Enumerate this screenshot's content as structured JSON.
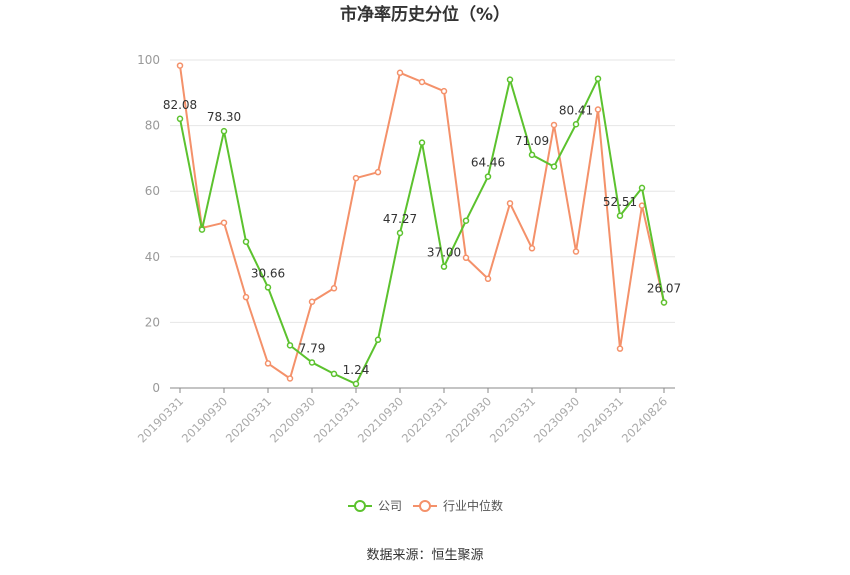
{
  "source": "数据来源：恒生聚源",
  "chart_data": {
    "type": "line",
    "title": "市净率历史分位（%）",
    "xlabel": "",
    "ylabel": "",
    "ylim": [
      0,
      100
    ],
    "yticks": [
      "0",
      "20",
      "40",
      "60",
      "80",
      "100"
    ],
    "tick_labels": [
      "20190331",
      "20190930",
      "20200331",
      "20200930",
      "20210331",
      "20210930",
      "20220331",
      "20220930",
      "20230331",
      "20230930",
      "20240331",
      "20240826"
    ],
    "x": [
      "20190331",
      "",
      "20190930",
      "",
      "20200331",
      "",
      "20200930",
      "",
      "20210331",
      "",
      "20210930",
      "",
      "20220331",
      "",
      "20220930",
      "",
      "20230331",
      "",
      "20230930",
      "",
      "20240331",
      "",
      "20240826"
    ],
    "grid": true,
    "legend_position": "bottom",
    "series": [
      {
        "name": "公司",
        "color": "#5cc22e",
        "values": [
          82.08,
          48.3,
          78.3,
          44.6,
          30.66,
          13.0,
          7.79,
          4.3,
          1.24,
          14.7,
          47.27,
          74.8,
          37.0,
          51.0,
          64.46,
          94.0,
          71.09,
          67.5,
          80.41,
          94.3,
          52.51,
          61.0,
          26.07
        ],
        "labels": [
          "82.08",
          "",
          "78.30",
          "",
          "30.66",
          "",
          "7.79",
          "",
          "1.24",
          "",
          "47.27",
          "",
          "37.00",
          "",
          "64.46",
          "",
          "71.09",
          "",
          "80.41",
          "",
          "52.51",
          "",
          "26.07"
        ]
      },
      {
        "name": "行业中位数",
        "color": "#f4916a",
        "values": [
          98.3,
          48.8,
          50.4,
          27.7,
          7.5,
          2.9,
          26.3,
          30.4,
          64.0,
          65.8,
          96.1,
          93.3,
          90.5,
          39.7,
          33.3,
          56.3,
          42.6,
          80.2,
          41.6,
          84.9,
          12.0,
          55.6,
          26.07
        ]
      }
    ]
  }
}
